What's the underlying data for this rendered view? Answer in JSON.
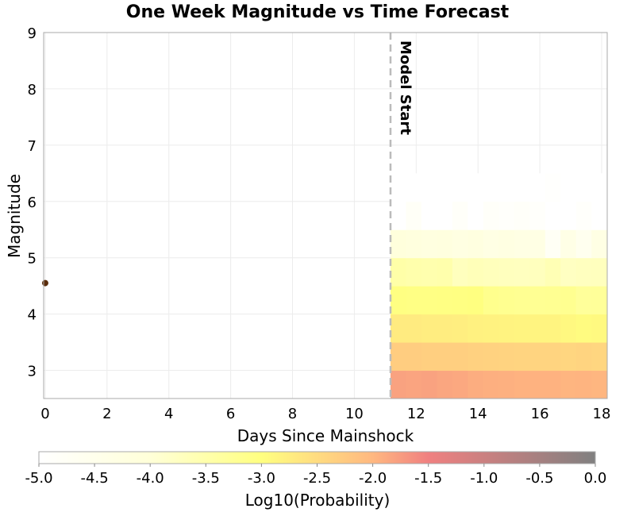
{
  "chart_data": {
    "type": "heatmap",
    "title": "One Week Magnitude vs Time Forecast",
    "xlabel": "Days Since Mainshock",
    "ylabel": "Magnitude",
    "xlim": [
      -0.05,
      18.18
    ],
    "ylim": [
      2.5,
      9
    ],
    "x_ticks": [
      "0",
      "2",
      "4",
      "6",
      "8",
      "10",
      "12",
      "14",
      "16",
      "18"
    ],
    "y_ticks": [
      "3",
      "4",
      "5",
      "6",
      "7",
      "8",
      "9"
    ],
    "grid": true,
    "model_start": {
      "x": 11.17,
      "label": "Model Start"
    },
    "mainshock": {
      "x": 0,
      "y": 4.55,
      "color": "#5a2d0c"
    },
    "heatmap": {
      "x_start": 11.17,
      "x_bin_width": 0.5,
      "y_bins": [
        2.5,
        3.0,
        3.5,
        4.0,
        4.5,
        5.0,
        5.5,
        6.0
      ],
      "y_bin_height": 0.5,
      "log10_probability": [
        [
          -1.8,
          -1.82,
          -1.8,
          -1.84,
          -1.86,
          -1.9,
          -1.92,
          -1.93,
          -1.95,
          -1.95,
          -1.95,
          -1.97,
          -1.96,
          -1.98
        ],
        [
          -2.3,
          -2.3,
          -2.32,
          -2.33,
          -2.33,
          -2.35,
          -2.37,
          -2.38,
          -2.4,
          -2.4,
          -2.4,
          -2.42,
          -2.4,
          -2.42
        ],
        [
          -2.72,
          -2.72,
          -2.74,
          -2.75,
          -2.76,
          -2.8,
          -2.82,
          -2.83,
          -2.85,
          -2.85,
          -2.85,
          -2.9,
          -2.95,
          -2.92
        ],
        [
          -3.02,
          -3.05,
          -3.05,
          -3.03,
          -3.02,
          -3.0,
          -3.15,
          -3.18,
          -3.2,
          -3.22,
          -3.2,
          -3.18,
          -3.3,
          -3.28
        ],
        [
          -3.45,
          -3.5,
          -3.52,
          -3.5,
          -3.7,
          -3.65,
          -3.68,
          -3.7,
          -3.72,
          -3.7,
          -3.6,
          -3.75,
          -3.72,
          -3.7
        ],
        [
          -4.1,
          -4.15,
          -4.2,
          -4.18,
          -4.25,
          -4.2,
          -4.3,
          -4.25,
          -4.3,
          -4.3,
          -4.75,
          -4.35,
          -4.6,
          -4.3
        ],
        [
          -5.0,
          -4.8,
          -5.0,
          -5.0,
          -4.85,
          -5.0,
          -4.85,
          -4.9,
          -4.85,
          -4.9,
          -5.0,
          -5.0,
          -4.9,
          -5.0
        ],
        [
          -5.0,
          -5.0,
          -5.0,
          -5.0,
          -5.0,
          -5.0,
          -5.0,
          -5.0,
          -5.0,
          -5.0,
          -4.95,
          -5.0,
          -5.0,
          -5.0
        ]
      ]
    },
    "colorbar": {
      "label": "Log10(Probability)",
      "range": [
        -5.0,
        0.0
      ],
      "ticks": [
        "-5.0",
        "-4.5",
        "-4.0",
        "-3.5",
        "-3.0",
        "-2.5",
        "-2.0",
        "-1.5",
        "-1.0",
        "-0.5",
        "0.0"
      ],
      "stops": [
        {
          "v": -5.0,
          "color": "#ffffff"
        },
        {
          "v": -4.0,
          "color": "#ffffd8"
        },
        {
          "v": -3.0,
          "color": "#ffff80"
        },
        {
          "v": -2.0,
          "color": "#ffb880"
        },
        {
          "v": -1.5,
          "color": "#f08080"
        },
        {
          "v": 0.0,
          "color": "#808080"
        }
      ]
    }
  }
}
